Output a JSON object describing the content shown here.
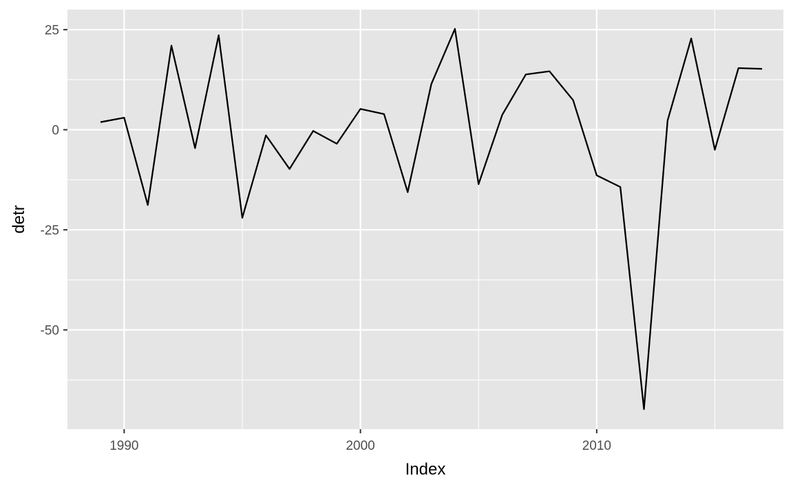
{
  "chart_data": {
    "type": "line",
    "title": "",
    "xlabel": "Index",
    "ylabel": "detr",
    "xlim": [
      1987.6,
      2017.9
    ],
    "ylim": [
      -74.8,
      30
    ],
    "x_ticks": [
      1990,
      2000,
      2010
    ],
    "x_tick_labels": [
      "1990",
      "2000",
      "2010"
    ],
    "x_minor_ticks": [
      1995,
      2005,
      2015
    ],
    "y_ticks": [
      25,
      0,
      -25,
      -50
    ],
    "y_tick_labels": [
      "25",
      "0",
      "-25",
      "-50"
    ],
    "y_minor_ticks": [
      12.5,
      -12.5,
      -37.5,
      -62.5
    ],
    "grid": true,
    "legend": "none",
    "series": [
      {
        "x": [
          1989,
          1990,
          1991,
          1992,
          1993,
          1994,
          1995,
          1996,
          1997,
          1998,
          1999,
          2000,
          2001,
          2002,
          2003,
          2004,
          2005,
          2006,
          2007,
          2008,
          2009,
          2010,
          2011,
          2012,
          2013,
          2014,
          2015,
          2016,
          2017
        ],
        "y": [
          1.9,
          3.0,
          -18.8,
          21.0,
          -4.6,
          23.6,
          -22.0,
          -1.4,
          -9.8,
          -0.3,
          -3.5,
          5.2,
          3.9,
          -15.6,
          11.4,
          25.2,
          -13.6,
          3.7,
          13.8,
          14.6,
          7.4,
          -11.4,
          -14.3,
          -69.8,
          2.3,
          22.8,
          -5.0,
          15.4,
          15.2
        ]
      }
    ],
    "colors": {
      "panel": "#e5e5e5",
      "grid": "#ffffff",
      "line": "#000000",
      "tick_text": "#4d4d4d",
      "tick_mark": "#333333",
      "axis_title": "#000000"
    }
  }
}
